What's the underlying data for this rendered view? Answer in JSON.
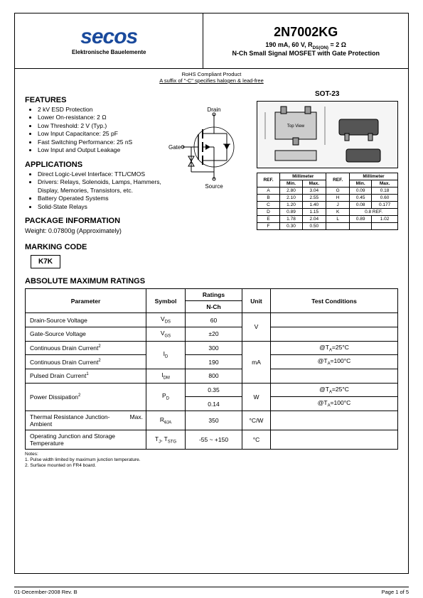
{
  "header": {
    "logo": "secos",
    "logo_subtitle": "Elektronische Bauelemente",
    "part_number": "2N7002KG",
    "spec_line": "190 mA, 60 V, R<sub>DS(ON)</sub> = 2 Ω",
    "desc_line": "N-Ch Small Signal MOSFET with Gate Protection"
  },
  "rohs": {
    "line1": "RoHS Compliant Product",
    "line2": "A suffix of \"-C\" specifies halogen & lead-free"
  },
  "features": {
    "title": "FEATURES",
    "items": [
      "2 kV ESD Protection",
      "Lower On-resistance: 2 Ω",
      "Low Threshold: 2 V (Typ.)",
      "Low Input Capacitance: 25 pF",
      "Fast Switching Performance: 25 nS",
      "Low Input and Output Leakage"
    ]
  },
  "applications": {
    "title": "APPLICATIONS",
    "items": [
      "Direct Logic-Level Interface: TTL/CMOS",
      "Drivers: Relays, Solenoids, Lamps, Hammers, Display, Memories, Transistors, etc.",
      "Battery Operated Systems",
      "Solid-State Relays"
    ]
  },
  "package_info": {
    "title": "PACKAGE INFORMATION",
    "weight": "Weight: 0.07800g (Approximately)"
  },
  "schematic": {
    "drain_label": "Drain",
    "gate_label": "Gate",
    "source_label": "Source"
  },
  "package": {
    "title": "SOT-23",
    "top_view": "Top View",
    "dim_headers": [
      "REF.",
      "Min.",
      "Max.",
      "REF.",
      "Min.",
      "Max."
    ],
    "dim_unit": "Millimeter",
    "rows": [
      [
        "A",
        "2.80",
        "3.04",
        "G",
        "0.09",
        "0.18"
      ],
      [
        "B",
        "2.10",
        "2.55",
        "H",
        "0.45",
        "0.60"
      ],
      [
        "C",
        "1.20",
        "1.40",
        "J",
        "0.08",
        "0.177"
      ],
      [
        "D",
        "0.89",
        "1.15",
        "K",
        "0.8 REF.",
        ""
      ],
      [
        "E",
        "1.78",
        "2.04",
        "L",
        "0.89",
        "1.02"
      ],
      [
        "F",
        "0.30",
        "0.50",
        "",
        "",
        ""
      ]
    ]
  },
  "marking": {
    "title": "MARKING CODE",
    "code": "K7K"
  },
  "ratings": {
    "title": "ABSOLUTE MAXIMUM RATINGS",
    "headers": {
      "parameter": "Parameter",
      "symbol": "Symbol",
      "ratings": "Ratings",
      "nch": "N-Ch",
      "unit": "Unit",
      "test": "Test Conditions"
    },
    "rows": [
      {
        "param": "Drain-Source Voltage",
        "symbol": "V<sub>DS</sub>",
        "val": "60",
        "unit": "V",
        "test": ""
      },
      {
        "param": "Gate-Source Voltage",
        "symbol": "V<sub>GS</sub>",
        "val": "±20",
        "unit": "",
        "test": ""
      },
      {
        "param": "Continuous Drain Current<sup>2</sup>",
        "symbol": "I<sub>D</sub>",
        "val": "300",
        "unit": "mA",
        "test": "@T<sub>A</sub>=25°C"
      },
      {
        "param": "Continuous Drain Current<sup>2</sup>",
        "symbol": "",
        "val": "190",
        "unit": "",
        "test": "@T<sub>A</sub>=100°C"
      },
      {
        "param": "Pulsed Drain Current<sup>1</sup>",
        "symbol": "I<sub>DM</sub>",
        "val": "800",
        "unit": "",
        "test": ""
      },
      {
        "param": "Power Dissipation<sup>2</sup>",
        "symbol": "P<sub>D</sub>",
        "val": "0.35",
        "unit": "W",
        "test": "@T<sub>A</sub>=25°C"
      },
      {
        "param": "",
        "symbol": "",
        "val": "0.14",
        "unit": "",
        "test": "@T<sub>A</sub>=100°C"
      },
      {
        "param": "Thermal Resistance Junction-Ambient",
        "max": "Max.",
        "symbol": "R<sub>θJA</sub>",
        "val": "350",
        "unit": "°C/W",
        "test": ""
      },
      {
        "param": "Operating Junction and Storage Temperature",
        "symbol": "T<sub>J</sub>, T<sub>STG</sub>",
        "val": "-55 ~ +150",
        "unit": "°C",
        "test": ""
      }
    ]
  },
  "notes": {
    "title": "Notes:",
    "items": [
      "1.    Pulse width limited by maximum junction temperature.",
      "2.    Surface mounted on FR4 board."
    ]
  },
  "footer": {
    "left": "01-December-2008 Rev. B",
    "right": "Page 1 of 5"
  },
  "colors": {
    "logo": "#1a4a9c",
    "border": "#000000",
    "text": "#000000",
    "bg": "#ffffff"
  }
}
